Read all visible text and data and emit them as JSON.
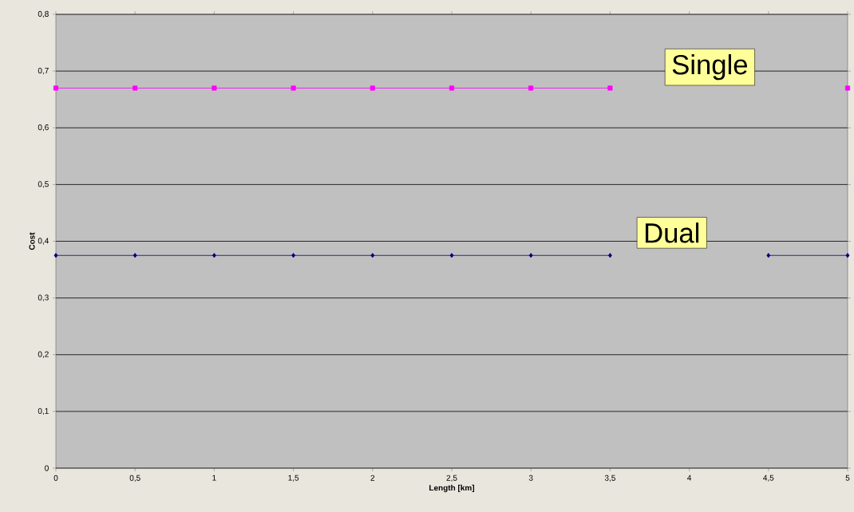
{
  "chart_data": {
    "type": "line",
    "xlabel": "Length [km]",
    "ylabel": "Cost",
    "x": [
      0,
      0.5,
      1,
      1.5,
      2,
      2.5,
      3,
      3.5,
      4,
      4.5,
      5
    ],
    "series": [
      {
        "name": "Single",
        "color": "#ff00ff",
        "marker": "square",
        "values": [
          0.67,
          0.67,
          0.67,
          0.67,
          0.67,
          0.67,
          0.67,
          0.67,
          null,
          null,
          0.67
        ]
      },
      {
        "name": "Dual",
        "color": "#000080",
        "marker": "diamond",
        "values": [
          0.375,
          0.375,
          0.375,
          0.375,
          0.375,
          0.375,
          0.375,
          0.375,
          null,
          0.375,
          0.375
        ]
      }
    ],
    "xlim": [
      0,
      5
    ],
    "ylim": [
      0,
      0.8
    ],
    "xticks": [
      0,
      {
        "value": 0.5,
        "label": "0,5"
      },
      1,
      {
        "value": 1.5,
        "label": "1,5"
      },
      2,
      {
        "value": 2.5,
        "label": "2,5"
      },
      3,
      {
        "value": 3.5,
        "label": "3,5"
      },
      4,
      {
        "value": 4.5,
        "label": "4,5"
      },
      5
    ],
    "yticks": [
      0,
      {
        "value": 0.1,
        "label": "0,1"
      },
      {
        "value": 0.2,
        "label": "0,2"
      },
      {
        "value": 0.3,
        "label": "0,3"
      },
      {
        "value": 0.4,
        "label": "0,4"
      },
      {
        "value": 0.5,
        "label": "0,5"
      },
      {
        "value": 0.6,
        "label": "0,6"
      },
      {
        "value": 0.7,
        "label": "0,7"
      },
      {
        "value": 0.8,
        "label": "0,8"
      }
    ],
    "grid": "y",
    "legend": false,
    "line_style": "solid"
  }
}
